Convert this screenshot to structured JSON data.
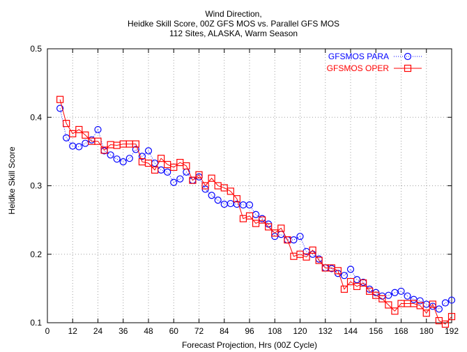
{
  "chart_data": {
    "type": "line",
    "title": [
      "Wind Direction,",
      "Heidke Skill Score, 00Z GFS MOS vs. Parallel GFS MOS",
      "112 Sites, ALASKA, Warm Season"
    ],
    "xlabel": "Forecast Projection, Hrs (00Z Cycle)",
    "ylabel": "Heidke Skill Score",
    "xlim": [
      0,
      192
    ],
    "ylim": [
      0.1,
      0.5
    ],
    "xticks": [
      0,
      12,
      24,
      36,
      48,
      60,
      72,
      84,
      96,
      108,
      120,
      132,
      144,
      156,
      168,
      180,
      192
    ],
    "yticks": [
      0.1,
      0.2,
      0.3,
      0.4,
      0.5
    ],
    "ytick_labels": [
      "0.1",
      "0.2",
      "0.3",
      "0.4",
      "0.5"
    ],
    "grid": true,
    "legend_position": "top-right",
    "series": [
      {
        "name": "GFSMOS PARA",
        "color": "#0000ff",
        "marker": "circle",
        "line": "dotted",
        "x": [
          6,
          9,
          12,
          15,
          18,
          21,
          24,
          27,
          30,
          33,
          36,
          39,
          42,
          45,
          48,
          51,
          54,
          57,
          60,
          63,
          66,
          69,
          72,
          75,
          78,
          81,
          84,
          87,
          90,
          93,
          96,
          99,
          102,
          105,
          108,
          111,
          114,
          117,
          120,
          123,
          126,
          129,
          132,
          135,
          138,
          141,
          144,
          147,
          150,
          153,
          156,
          159,
          162,
          165,
          168,
          171,
          174,
          177,
          180,
          183,
          186,
          189,
          192
        ],
        "values": [
          0.413,
          0.37,
          0.358,
          0.357,
          0.362,
          0.367,
          0.382,
          0.351,
          0.345,
          0.339,
          0.335,
          0.34,
          0.353,
          0.343,
          0.351,
          0.333,
          0.323,
          0.32,
          0.305,
          0.31,
          0.32,
          0.308,
          0.313,
          0.295,
          0.286,
          0.279,
          0.273,
          0.274,
          0.273,
          0.272,
          0.272,
          0.258,
          0.252,
          0.244,
          0.226,
          0.229,
          0.221,
          0.221,
          0.226,
          0.204,
          0.2,
          0.193,
          0.18,
          0.179,
          0.172,
          0.169,
          0.178,
          0.163,
          0.159,
          0.149,
          0.144,
          0.139,
          0.14,
          0.144,
          0.146,
          0.139,
          0.134,
          0.132,
          0.127,
          0.124,
          0.12,
          0.129,
          0.133
        ]
      },
      {
        "name": "GFSMOS OPER",
        "color": "#ff0000",
        "marker": "square",
        "line": "solid",
        "x": [
          6,
          9,
          12,
          15,
          18,
          21,
          24,
          27,
          30,
          33,
          36,
          39,
          42,
          45,
          48,
          51,
          54,
          57,
          60,
          63,
          66,
          69,
          72,
          75,
          78,
          81,
          84,
          87,
          90,
          93,
          96,
          99,
          102,
          105,
          108,
          111,
          114,
          117,
          120,
          123,
          126,
          129,
          132,
          135,
          138,
          141,
          144,
          147,
          150,
          153,
          156,
          159,
          162,
          165,
          168,
          171,
          174,
          177,
          180,
          183,
          186,
          189,
          192
        ],
        "values": [
          0.426,
          0.391,
          0.376,
          0.382,
          0.374,
          0.365,
          0.365,
          0.352,
          0.36,
          0.359,
          0.361,
          0.361,
          0.361,
          0.335,
          0.333,
          0.323,
          0.34,
          0.331,
          0.327,
          0.334,
          0.329,
          0.308,
          0.316,
          0.3,
          0.311,
          0.3,
          0.297,
          0.292,
          0.281,
          0.252,
          0.256,
          0.245,
          0.25,
          0.24,
          0.231,
          0.238,
          0.221,
          0.197,
          0.2,
          0.196,
          0.206,
          0.191,
          0.18,
          0.18,
          0.176,
          0.149,
          0.16,
          0.153,
          0.158,
          0.146,
          0.14,
          0.135,
          0.126,
          0.117,
          0.128,
          0.128,
          0.128,
          0.125,
          0.114,
          0.127,
          0.103,
          0.098,
          0.109
        ]
      }
    ]
  }
}
